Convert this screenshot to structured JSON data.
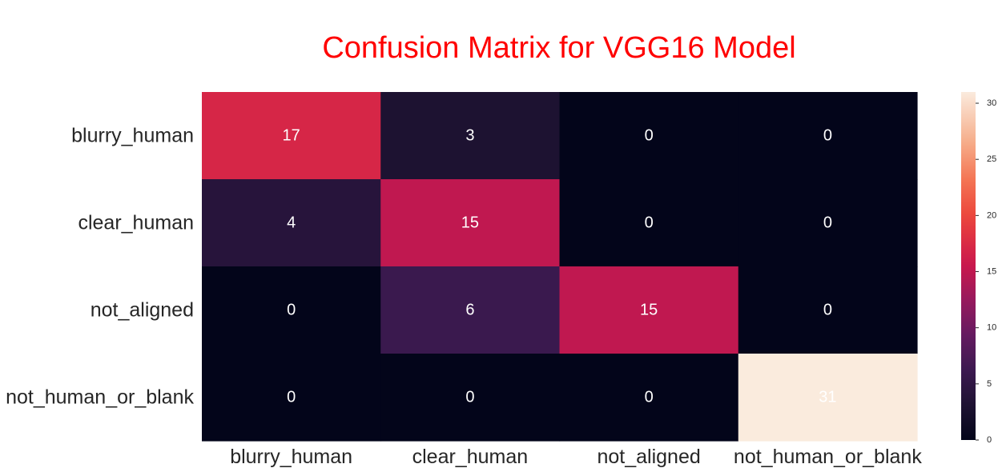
{
  "chart_data": {
    "type": "heatmap",
    "title": "Confusion Matrix for VGG16 Model",
    "title_color": "#ff0000",
    "xlabel": "",
    "ylabel": "",
    "x_categories": [
      "blurry_human",
      "clear_human",
      "not_aligned",
      "not_human_or_blank"
    ],
    "y_categories": [
      "blurry_human",
      "clear_human",
      "not_aligned",
      "not_human_or_blank"
    ],
    "values": [
      [
        17,
        3,
        0,
        0
      ],
      [
        4,
        15,
        0,
        0
      ],
      [
        0,
        6,
        15,
        0
      ],
      [
        0,
        0,
        0,
        31
      ]
    ],
    "colormap": "rocket",
    "colorbar": {
      "min": 0,
      "max": 31,
      "ticks": [
        "0",
        "5",
        "10",
        "15",
        "20",
        "25",
        "30"
      ]
    },
    "grid": false,
    "annotations_color": "#ffffff"
  }
}
